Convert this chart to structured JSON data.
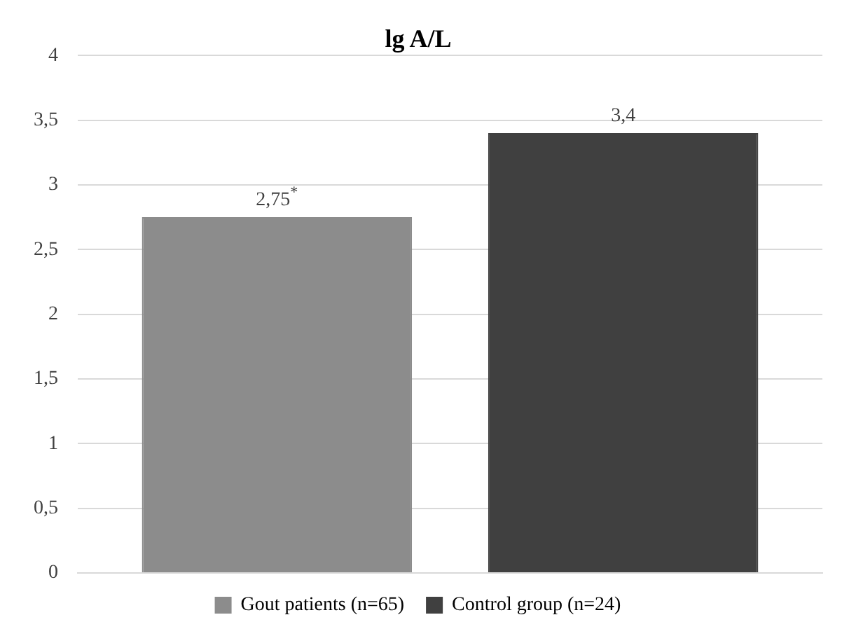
{
  "chart_data": {
    "type": "bar",
    "title": "lg A/L",
    "categories": [
      null
    ],
    "series": [
      {
        "name": "Gout patients (n=65)",
        "color": "#8c8c8c",
        "values": [
          2.75
        ],
        "value_labels": [
          "2,75$^{*}$"
        ]
      },
      {
        "name": "Control group (n=24)",
        "color": "#404040",
        "values": [
          3.4
        ],
        "value_labels": [
          "3,4"
        ]
      }
    ],
    "ylim": [
      0,
      4
    ],
    "yticks": [
      0,
      {
        "value": 0.5,
        "label": "0,5"
      },
      1,
      {
        "value": 1.5,
        "label": "1,5"
      },
      2,
      {
        "value": 2.5,
        "label": "2,5"
      },
      3,
      {
        "value": 3.5,
        "label": "3,5"
      },
      4
    ],
    "grid": "y",
    "legend": "bottom"
  }
}
